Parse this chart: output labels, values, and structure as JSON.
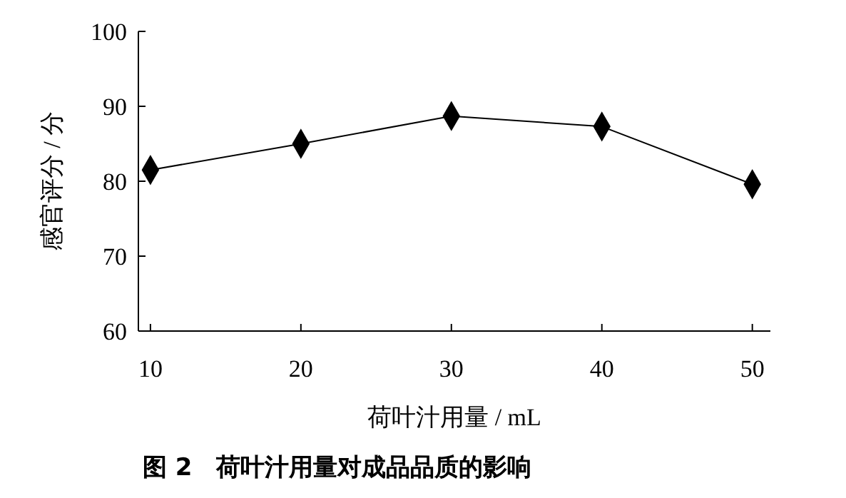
{
  "chart_data": {
    "type": "line",
    "title": "图 2　荷叶汁用量对成品品质的影响",
    "xlabel": "荷叶汁用量 / mL",
    "ylabel": "感官评分 / 分",
    "x": [
      10,
      20,
      30,
      40,
      50
    ],
    "series": [
      {
        "color": "#000000",
        "values": [
          81.5,
          85,
          88.7,
          87.3,
          79.6
        ]
      }
    ],
    "xlim": [
      9.2,
      51.2
    ],
    "xticks": [
      10,
      20,
      30,
      40,
      50
    ],
    "ylim": [
      60,
      100
    ],
    "yticks": [
      60,
      70,
      80,
      90,
      100
    ],
    "marker": "diamond",
    "line_style": "solid",
    "grid": false
  }
}
